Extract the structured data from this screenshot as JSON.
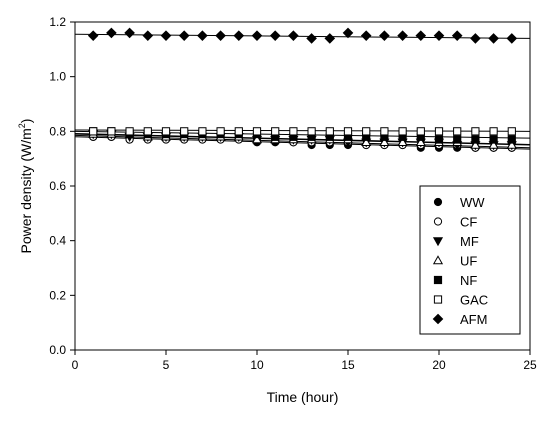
{
  "chart_data": {
    "type": "scatter",
    "xlabel": "Time (hour)",
    "ylabel": "Power density (W/m",
    "ylabel_sup": "2",
    "ylabel_close": ")",
    "xlim": [
      0,
      25
    ],
    "ylim": [
      0.0,
      1.2
    ],
    "xticks": [
      0,
      5,
      10,
      15,
      20,
      25
    ],
    "yticks": [
      0.0,
      0.2,
      0.4,
      0.6,
      0.8,
      1.0,
      1.2
    ],
    "xtick_labels": [
      "0",
      "5",
      "10",
      "15",
      "20",
      "25"
    ],
    "ytick_labels": [
      "0.0",
      "0.2",
      "0.4",
      "0.6",
      "0.8",
      "1.0",
      "1.2"
    ],
    "grid": false,
    "legend_position": "lower-right",
    "x": [
      1,
      2,
      3,
      4,
      5,
      6,
      7,
      8,
      9,
      10,
      11,
      12,
      13,
      14,
      15,
      16,
      17,
      18,
      19,
      20,
      21,
      22,
      23,
      24
    ],
    "series": [
      {
        "name": "WW",
        "marker": "filled-circle",
        "values": [
          0.78,
          0.78,
          0.77,
          0.77,
          0.77,
          0.77,
          0.77,
          0.77,
          0.77,
          0.76,
          0.76,
          0.76,
          0.75,
          0.75,
          0.75,
          0.75,
          0.75,
          0.75,
          0.74,
          0.74,
          0.74,
          0.74,
          0.74,
          0.74
        ],
        "fit": [
          0.78,
          0.735
        ]
      },
      {
        "name": "CF",
        "marker": "open-circle",
        "values": [
          0.78,
          0.78,
          0.77,
          0.77,
          0.77,
          0.77,
          0.77,
          0.77,
          0.77,
          0.77,
          0.77,
          0.76,
          0.76,
          0.76,
          0.76,
          0.75,
          0.75,
          0.75,
          0.75,
          0.75,
          0.75,
          0.74,
          0.74,
          0.74
        ],
        "fit": [
          0.785,
          0.74
        ]
      },
      {
        "name": "MF",
        "marker": "filled-triangle-down",
        "values": [
          0.79,
          0.79,
          0.78,
          0.78,
          0.78,
          0.78,
          0.78,
          0.78,
          0.78,
          0.77,
          0.77,
          0.77,
          0.77,
          0.77,
          0.76,
          0.76,
          0.76,
          0.76,
          0.76,
          0.76,
          0.75,
          0.75,
          0.75,
          0.75
        ],
        "fit": [
          0.79,
          0.75
        ]
      },
      {
        "name": "UF",
        "marker": "open-triangle-up",
        "values": [
          0.79,
          0.79,
          0.79,
          0.78,
          0.78,
          0.78,
          0.78,
          0.78,
          0.78,
          0.77,
          0.77,
          0.77,
          0.77,
          0.77,
          0.77,
          0.76,
          0.76,
          0.76,
          0.76,
          0.76,
          0.76,
          0.75,
          0.75,
          0.75
        ],
        "fit": [
          0.792,
          0.752
        ]
      },
      {
        "name": "NF",
        "marker": "filled-square",
        "values": [
          0.8,
          0.8,
          0.79,
          0.79,
          0.79,
          0.79,
          0.79,
          0.79,
          0.79,
          0.79,
          0.78,
          0.78,
          0.78,
          0.78,
          0.78,
          0.78,
          0.78,
          0.78,
          0.78,
          0.77,
          0.77,
          0.77,
          0.77,
          0.77
        ],
        "fit": [
          0.8,
          0.775
        ]
      },
      {
        "name": "GAC",
        "marker": "open-square",
        "values": [
          0.8,
          0.8,
          0.8,
          0.8,
          0.8,
          0.8,
          0.8,
          0.8,
          0.8,
          0.8,
          0.8,
          0.8,
          0.8,
          0.8,
          0.8,
          0.8,
          0.8,
          0.8,
          0.8,
          0.8,
          0.8,
          0.8,
          0.8,
          0.8
        ],
        "fit": [
          0.805,
          0.8
        ]
      },
      {
        "name": "AFM",
        "marker": "filled-diamond",
        "values": [
          1.15,
          1.16,
          1.16,
          1.15,
          1.15,
          1.15,
          1.15,
          1.15,
          1.15,
          1.15,
          1.15,
          1.15,
          1.14,
          1.14,
          1.16,
          1.15,
          1.15,
          1.15,
          1.15,
          1.15,
          1.15,
          1.14,
          1.14,
          1.14
        ],
        "fit": [
          1.155,
          1.14
        ]
      }
    ]
  }
}
